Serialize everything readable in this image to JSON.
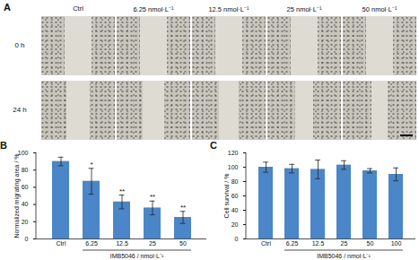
{
  "panel_a": {
    "panel": "A",
    "columns": [
      "Ctrl",
      "6.25 nmol·L⁻¹",
      "12.5 nmol·L⁻¹",
      "25 nmol·L⁻¹",
      "50 nmol·L⁻¹"
    ],
    "rows": [
      "0 h",
      "24 h"
    ]
  },
  "chart_data": [
    {
      "type": "bar",
      "panel": "B",
      "categories": [
        "Ctrl",
        "6.25",
        "12.5",
        "25",
        "50"
      ],
      "values": [
        90,
        67,
        43,
        36,
        25
      ],
      "error": [
        5,
        15,
        8,
        8,
        7
      ],
      "significance": [
        null,
        "*",
        "**",
        "**",
        "**"
      ],
      "ylabel": "Normalized migrating area / %",
      "xlabel": "IMB5046 / nmol·L⁻¹",
      "ylim": [
        0,
        100
      ],
      "yticks": [
        0,
        20,
        40,
        60,
        80,
        100
      ],
      "color": "#4a86c8"
    },
    {
      "type": "bar",
      "panel": "C",
      "categories": [
        "Ctrl",
        "6.25",
        "12.5",
        "25",
        "50",
        "100"
      ],
      "values": [
        100,
        98,
        97,
        103,
        95,
        90
      ],
      "error": [
        7,
        6,
        13,
        6,
        3,
        9
      ],
      "ylabel": "Cell survival / %",
      "xlabel": "IMB5046 / nmol·L⁻¹",
      "ylim": [
        0,
        120
      ],
      "yticks": [
        0,
        20,
        40,
        60,
        80,
        100,
        120
      ],
      "color": "#4a86c8"
    }
  ]
}
